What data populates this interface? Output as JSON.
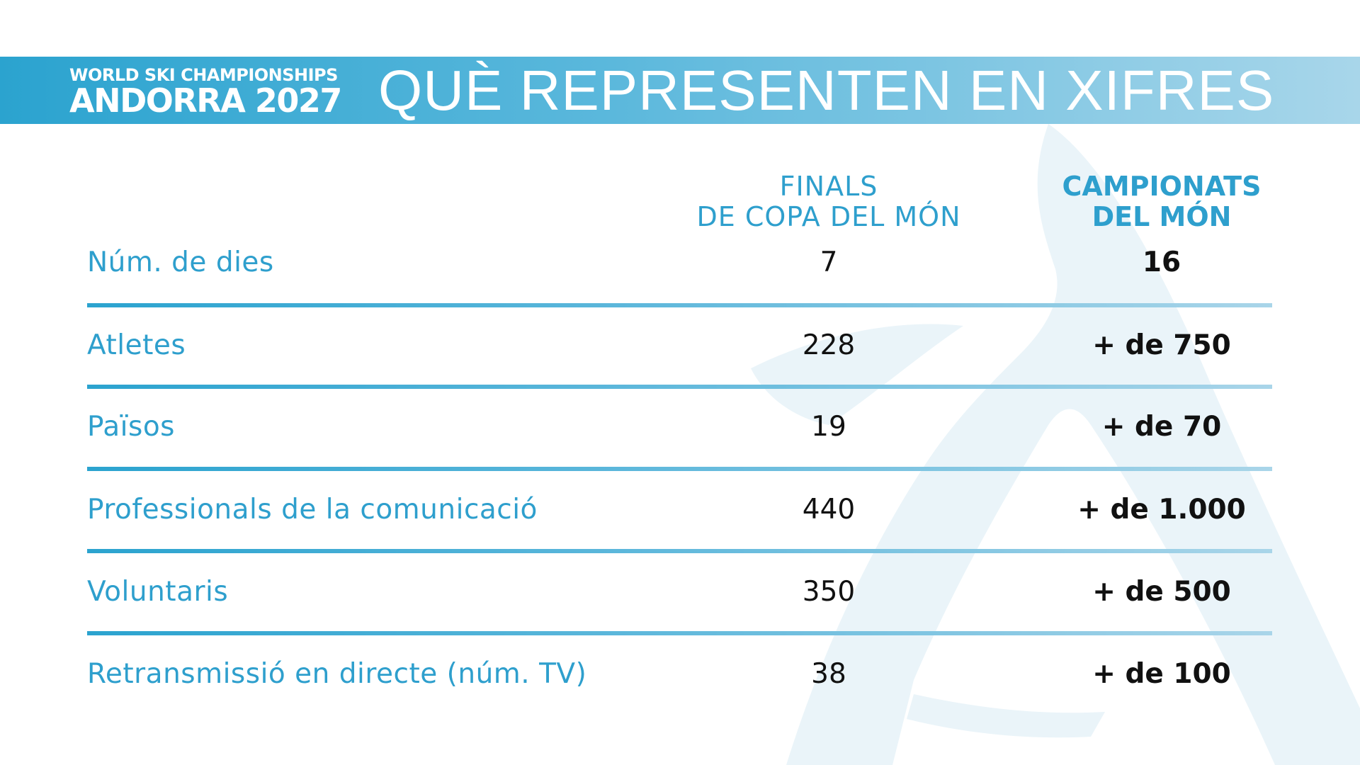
{
  "header": {
    "brand_line1": "WORLD SKI CHAMPIONSHIPS",
    "brand_line2": "ANDORRA 2027",
    "title": "QUÈ REPRESENTEN EN XIFRES"
  },
  "table": {
    "columns": [
      "FINALS\nDE COPA DEL MÓN",
      "CAMPIONATS\nDEL MÓN"
    ],
    "rows": [
      {
        "label": "Núm. de dies",
        "finals": "7",
        "campionats": "16"
      },
      {
        "label": "Atletes",
        "finals": "228",
        "campionats": "+ de 750"
      },
      {
        "label": "Països",
        "finals": "19",
        "campionats": "+ de 70"
      },
      {
        "label": "Professionals de la comunicació",
        "finals": "440",
        "campionats": "+ de 1.000"
      },
      {
        "label": "Voluntaris",
        "finals": "350",
        "campionats": "+ de 500"
      },
      {
        "label": "Retransmissió en directe (núm. TV)",
        "finals": "38",
        "campionats": "+ de 100"
      }
    ]
  },
  "colors": {
    "accent": "#2e9fcd",
    "banner_start": "#2ba3cf",
    "banner_end": "#a8d6ea",
    "value_text": "#111111",
    "watermark": "#eaf4f9"
  }
}
